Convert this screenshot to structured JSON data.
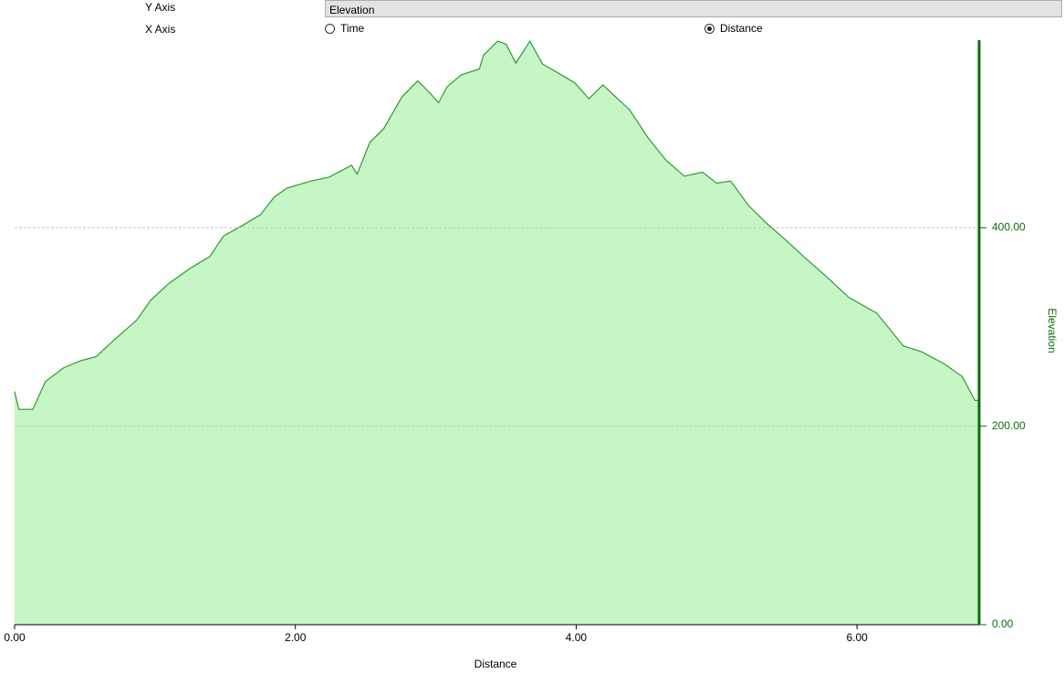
{
  "controls": {
    "y_axis": {
      "label": "Y Axis",
      "value": "Elevation"
    },
    "x_axis": {
      "label": "X Axis",
      "options": [
        "Time",
        "Distance"
      ],
      "selected": 1
    }
  },
  "chart_data": {
    "type": "area",
    "x_label": "Distance",
    "y_label": "Elevation",
    "color": "#2f9a2f",
    "fill": "#c6f5c6",
    "axis_color": "#0a6e0a",
    "grid": true,
    "xlim": [
      0,
      6.87
    ],
    "ylim": [
      0,
      589
    ],
    "xticks": [
      {
        "value": 0,
        "label": "0.00"
      },
      {
        "value": 2,
        "label": "2.00"
      },
      {
        "value": 4,
        "label": "4.00"
      },
      {
        "value": 6,
        "label": "6.00"
      }
    ],
    "yticks": [
      {
        "value": 0,
        "label": "0.00"
      },
      {
        "value": 200,
        "label": "200.00"
      },
      {
        "value": 400,
        "label": "400.00"
      }
    ],
    "x": [
      0.0,
      0.03,
      0.13,
      0.22,
      0.35,
      0.47,
      0.58,
      0.71,
      0.87,
      0.97,
      1.1,
      1.26,
      1.39,
      1.49,
      1.62,
      1.75,
      1.85,
      1.94,
      2.11,
      2.24,
      2.4,
      2.44,
      2.53,
      2.63,
      2.76,
      2.87,
      2.95,
      3.02,
      3.08,
      3.18,
      3.31,
      3.34,
      3.44,
      3.5,
      3.57,
      3.67,
      3.76,
      3.86,
      3.99,
      4.09,
      4.19,
      4.28,
      4.38,
      4.51,
      4.64,
      4.77,
      4.9,
      5.0,
      5.1,
      5.23,
      5.36,
      5.49,
      5.62,
      5.78,
      5.94,
      6.14,
      6.33,
      6.46,
      6.62,
      6.75,
      6.84,
      6.87
    ],
    "values": [
      235,
      217,
      217,
      245,
      259,
      266,
      270,
      287,
      307,
      327,
      344,
      360,
      371,
      392,
      402,
      413,
      431,
      440,
      447,
      451,
      463,
      454,
      486,
      500,
      532,
      548,
      537,
      526,
      542,
      554,
      560,
      574,
      588,
      585,
      566,
      588,
      565,
      557,
      546,
      530,
      544,
      532,
      519,
      491,
      468,
      452,
      456,
      445,
      447,
      422,
      404,
      388,
      371,
      351,
      330,
      314,
      281,
      275,
      263,
      250,
      226,
      226
    ]
  }
}
